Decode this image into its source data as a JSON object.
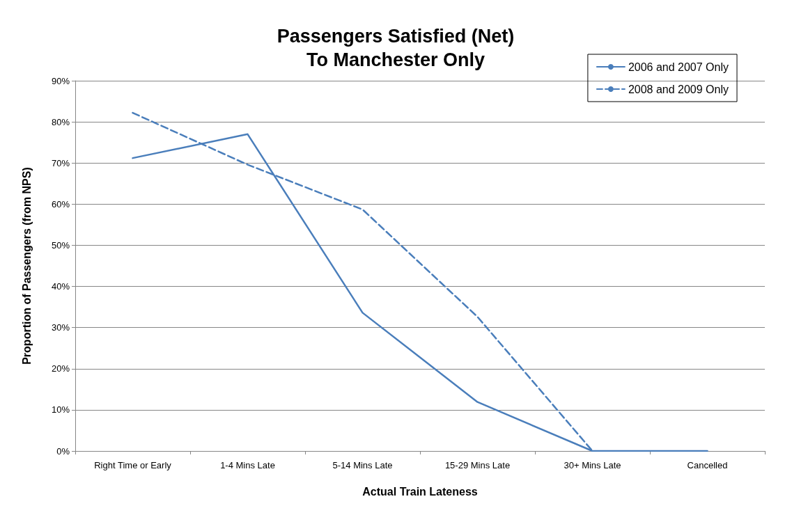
{
  "chart_data": {
    "type": "line",
    "title": "Passengers Satisfied (Net)\nTo Manchester Only",
    "xlabel": "Actual Train Lateness",
    "ylabel": "Proportion of Passengers (from NPS)",
    "categories": [
      "Right Time or Early",
      "1-4 Mins Late",
      "5-14 Mins Late",
      "15-29 Mins Late",
      "30+ Mins Late",
      "Cancelled"
    ],
    "series": [
      {
        "name": "2006 and 2007 Only",
        "color": "#4a7ebb",
        "line_style": "solid",
        "values": [
          71.2,
          77,
          33.6,
          11.9,
          0,
          0
        ]
      },
      {
        "name": "2008 and 2009 Only",
        "color": "#4a7ebb",
        "line_style": "dashed",
        "values": [
          82.2,
          69.6,
          58.7,
          32.6,
          0,
          null
        ]
      }
    ],
    "ylim": [
      0,
      90
    ],
    "yticks": [
      {
        "value": 0,
        "label": "0%"
      },
      {
        "value": 10,
        "label": "10%"
      },
      {
        "value": 20,
        "label": "20%"
      },
      {
        "value": 30,
        "label": "30%"
      },
      {
        "value": 40,
        "label": "40%"
      },
      {
        "value": 50,
        "label": "50%"
      },
      {
        "value": 60,
        "label": "60%"
      },
      {
        "value": 70,
        "label": "70%"
      },
      {
        "value": 80,
        "label": "80%"
      },
      {
        "value": 90,
        "label": "90%"
      }
    ],
    "grid": "y",
    "legend": "top right",
    "marker": "none"
  }
}
